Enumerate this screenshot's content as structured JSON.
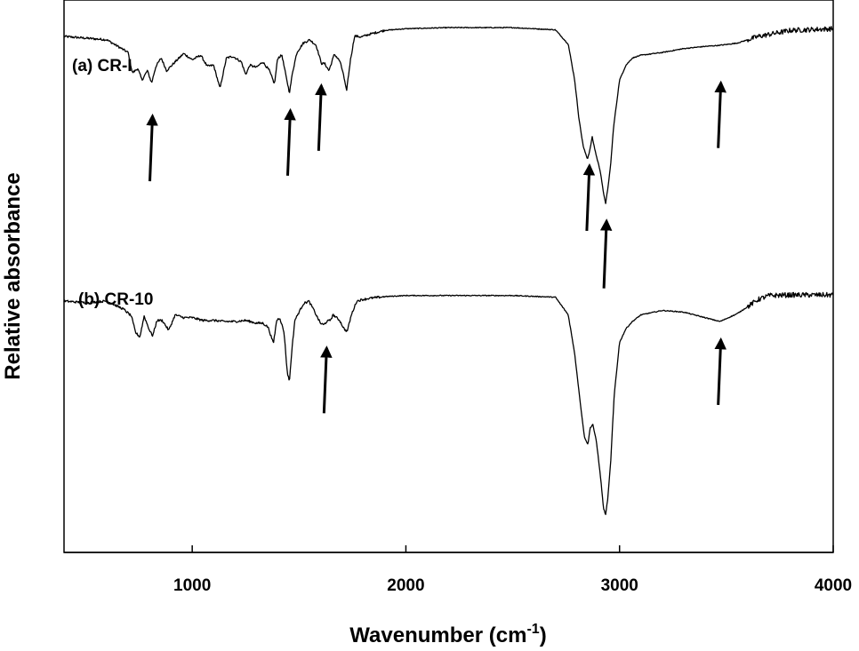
{
  "chart_data": {
    "type": "line",
    "title": "",
    "xlabel": "Wavenumber (cm",
    "xlabel_sup": "-1",
    "xlabel_close": ")",
    "ylabel": "Relative absorbance",
    "xlim": [
      400,
      4000
    ],
    "ylim": [
      0,
      1
    ],
    "x_ticks": [
      1000,
      2000,
      3000,
      4000
    ],
    "x_tick_labels": [
      "1000",
      "2000",
      "3000",
      "4000"
    ],
    "grid": false,
    "legend": "none",
    "series": [
      {
        "name": "(a) CR-I",
        "label": "(a) CR-I",
        "x": [
          400,
          600,
          700,
          720,
          745,
          765,
          790,
          810,
          830,
          855,
          880,
          920,
          960,
          1000,
          1040,
          1070,
          1100,
          1130,
          1160,
          1190,
          1230,
          1250,
          1270,
          1300,
          1330,
          1360,
          1385,
          1400,
          1420,
          1440,
          1455,
          1470,
          1490,
          1520,
          1550,
          1580,
          1605,
          1620,
          1640,
          1665,
          1690,
          1705,
          1722,
          1740,
          1760,
          1790,
          1830,
          1900,
          2000,
          2200,
          2500,
          2700,
          2760,
          2790,
          2810,
          2830,
          2850,
          2862,
          2872,
          2890,
          2910,
          2925,
          2935,
          2945,
          2958,
          2972,
          3000,
          3030,
          3060,
          3100,
          3200,
          3300,
          3400,
          3470,
          3550,
          3650,
          3800,
          4000
        ],
        "y": [
          0.934,
          0.928,
          0.905,
          0.868,
          0.876,
          0.855,
          0.872,
          0.85,
          0.88,
          0.895,
          0.872,
          0.888,
          0.903,
          0.892,
          0.9,
          0.88,
          0.882,
          0.84,
          0.895,
          0.898,
          0.888,
          0.865,
          0.882,
          0.878,
          0.888,
          0.873,
          0.848,
          0.895,
          0.9,
          0.86,
          0.832,
          0.87,
          0.905,
          0.922,
          0.928,
          0.918,
          0.885,
          0.885,
          0.872,
          0.902,
          0.89,
          0.87,
          0.835,
          0.89,
          0.935,
          0.933,
          0.938,
          0.945,
          0.948,
          0.95,
          0.95,
          0.946,
          0.92,
          0.855,
          0.785,
          0.735,
          0.712,
          0.73,
          0.752,
          0.72,
          0.69,
          0.65,
          0.632,
          0.658,
          0.7,
          0.77,
          0.855,
          0.882,
          0.895,
          0.9,
          0.905,
          0.912,
          0.916,
          0.918,
          0.922,
          0.934,
          0.945,
          0.948
        ]
      },
      {
        "name": "(b) CR-10",
        "label": "(b) CR-10",
        "x": [
          400,
          500,
          600,
          680,
          715,
          735,
          755,
          775,
          800,
          815,
          835,
          860,
          890,
          920,
          960,
          1000,
          1050,
          1100,
          1150,
          1200,
          1250,
          1300,
          1330,
          1355,
          1380,
          1395,
          1410,
          1430,
          1445,
          1455,
          1465,
          1480,
          1500,
          1520,
          1545,
          1565,
          1580,
          1600,
          1615,
          1630,
          1645,
          1660,
          1690,
          1710,
          1725,
          1745,
          1770,
          1800,
          1830,
          1900,
          2000,
          2200,
          2500,
          2700,
          2760,
          2790,
          2815,
          2835,
          2852,
          2862,
          2875,
          2892,
          2910,
          2925,
          2935,
          2945,
          2958,
          2975,
          3000,
          3030,
          3060,
          3100,
          3200,
          3300,
          3400,
          3470,
          3550,
          3600,
          3650,
          3700,
          3800,
          4000
        ],
        "y": [
          0.455,
          0.452,
          0.455,
          0.44,
          0.428,
          0.398,
          0.39,
          0.428,
          0.402,
          0.392,
          0.42,
          0.42,
          0.402,
          0.43,
          0.425,
          0.425,
          0.42,
          0.42,
          0.418,
          0.418,
          0.42,
          0.415,
          0.415,
          0.408,
          0.378,
          0.42,
          0.425,
          0.398,
          0.325,
          0.31,
          0.36,
          0.42,
          0.435,
          0.45,
          0.455,
          0.442,
          0.43,
          0.415,
          0.412,
          0.418,
          0.42,
          0.43,
          0.42,
          0.405,
          0.4,
          0.43,
          0.455,
          0.458,
          0.46,
          0.463,
          0.465,
          0.465,
          0.465,
          0.462,
          0.43,
          0.36,
          0.275,
          0.21,
          0.195,
          0.225,
          0.232,
          0.2,
          0.14,
          0.08,
          0.068,
          0.098,
          0.16,
          0.285,
          0.38,
          0.405,
          0.418,
          0.43,
          0.438,
          0.435,
          0.425,
          0.418,
          0.432,
          0.445,
          0.458,
          0.465,
          0.466,
          0.466
        ]
      }
    ],
    "annotations": [
      {
        "type": "arrow",
        "series": 0,
        "x": 810,
        "y_tip": 0.79,
        "y_tail": 0.672
      },
      {
        "type": "arrow",
        "series": 0,
        "x": 1455,
        "y_tip": 0.8,
        "y_tail": 0.682
      },
      {
        "type": "arrow",
        "series": 0,
        "x": 1600,
        "y_tip": 0.845,
        "y_tail": 0.727
      },
      {
        "type": "arrow",
        "series": 0,
        "x": 2855,
        "y_tip": 0.7,
        "y_tail": 0.582
      },
      {
        "type": "arrow",
        "series": 0,
        "x": 2935,
        "y_tip": 0.6,
        "y_tail": 0.478
      },
      {
        "type": "arrow",
        "series": 0,
        "x": 3470,
        "y_tip": 0.85,
        "y_tail": 0.732
      },
      {
        "type": "arrow",
        "series": 1,
        "x": 1625,
        "y_tip": 0.37,
        "y_tail": 0.252
      },
      {
        "type": "arrow",
        "series": 1,
        "x": 3470,
        "y_tip": 0.385,
        "y_tail": 0.267
      }
    ]
  }
}
